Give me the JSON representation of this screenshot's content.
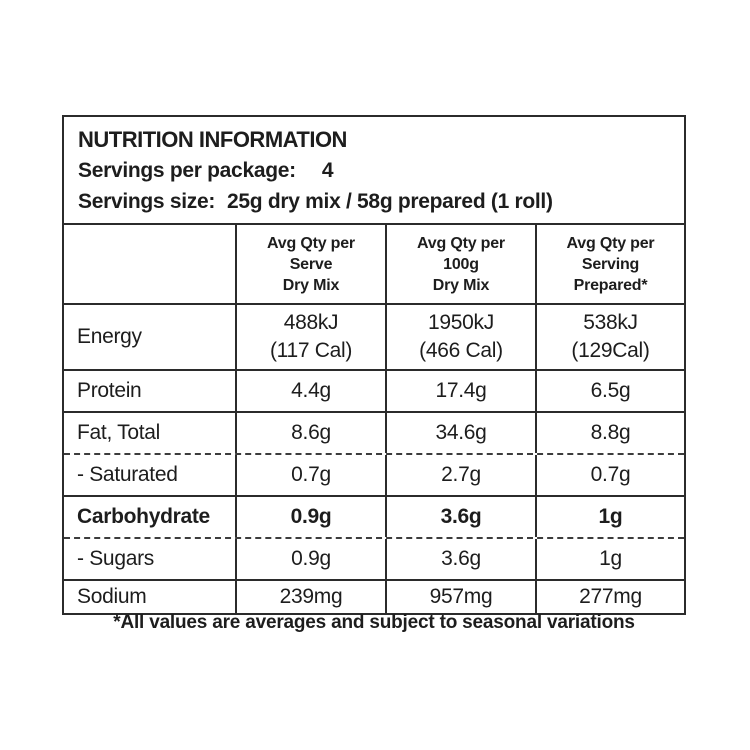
{
  "header": {
    "title": "NUTRITION INFORMATION",
    "servings_per_package_label": "Servings per package:",
    "servings_per_package_value": "4",
    "servings_size_label": "Servings size:",
    "servings_size_value": "25g dry mix / 58g prepared (1 roll)"
  },
  "table": {
    "columns": [
      "Avg Qty per\nServe\nDry Mix",
      "Avg Qty per\n100g\nDry Mix",
      "Avg Qty per\nServing\nPrepared*"
    ],
    "rows": [
      {
        "label": "Energy",
        "values": [
          "488kJ\n(117 Cal)",
          "1950kJ\n(466 Cal)",
          "538kJ\n(129Cal)"
        ]
      },
      {
        "label": "Protein",
        "values": [
          "4.4g",
          "17.4g",
          "6.5g"
        ]
      },
      {
        "label": "Fat, Total",
        "values": [
          "8.6g",
          "34.6g",
          "8.8g"
        ]
      },
      {
        "label": "- Saturated",
        "values": [
          "0.7g",
          "2.7g",
          "0.7g"
        ]
      },
      {
        "label": "Carbohydrate",
        "values": [
          "0.9g",
          "3.6g",
          "1g"
        ]
      },
      {
        "label": "- Sugars",
        "values": [
          "0.9g",
          "3.6g",
          "1g"
        ]
      },
      {
        "label": "Sodium",
        "values": [
          "239mg",
          "957mg",
          "277mg"
        ]
      }
    ]
  },
  "footnote": "*All values are averages and subject to seasonal variations",
  "colors": {
    "background": "#ffffff",
    "text": "#1d1d1d",
    "border": "#2b2b2b"
  }
}
